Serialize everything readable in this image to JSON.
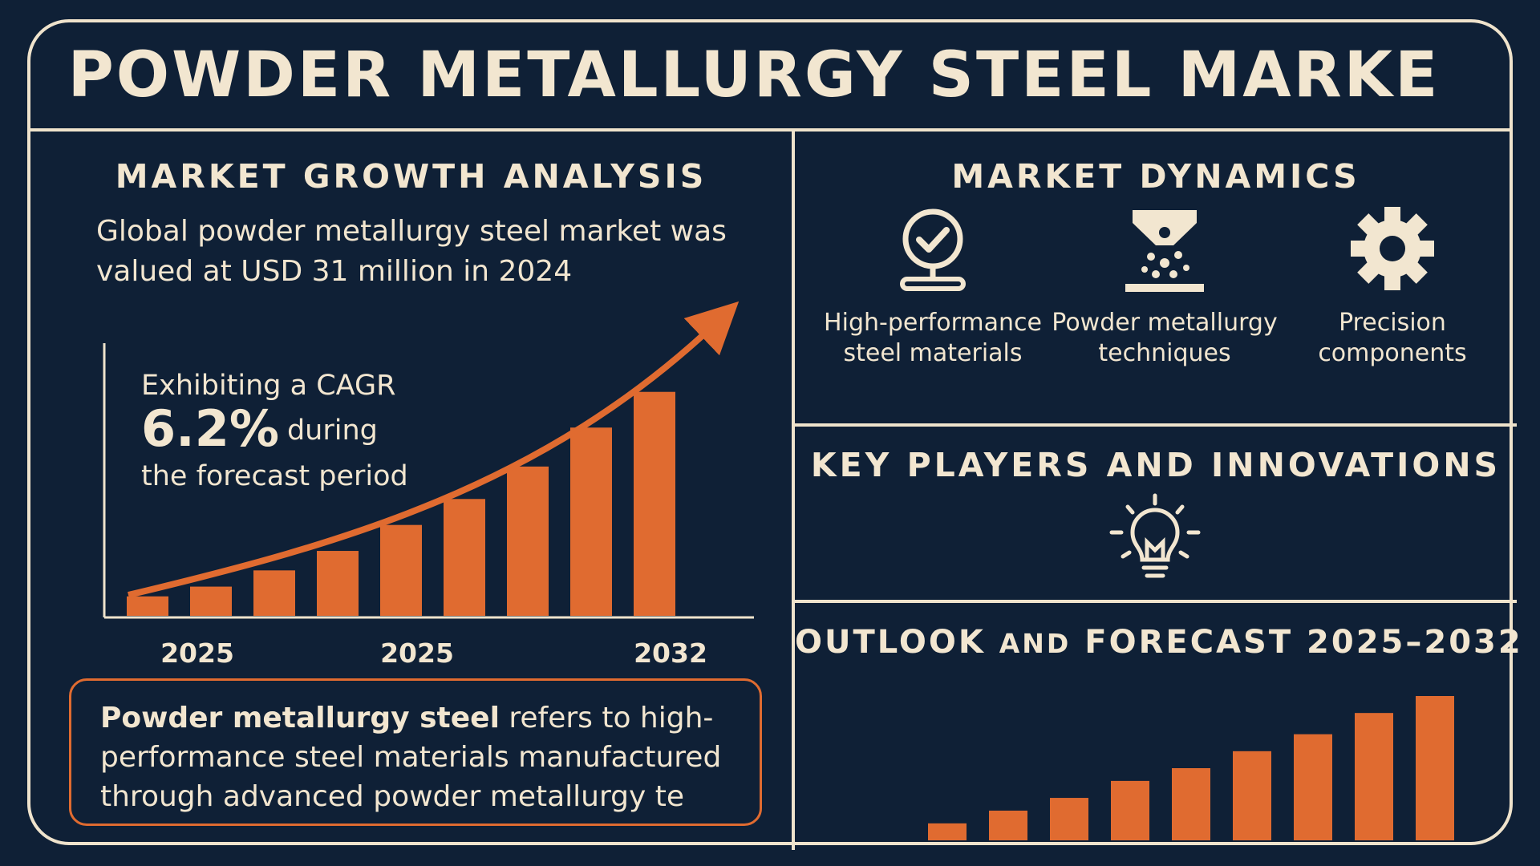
{
  "title": "POWDER METALLURGY STEEL MARKE",
  "growth": {
    "heading": "MARKET GROWTH ANALYSIS",
    "intro": "Global powder metallurgy steel market was valued at USD 31 million in 2024",
    "cagr_line1": "Exhibiting a CAGR",
    "cagr_value": "6.2%",
    "cagr_during": "during",
    "cagr_line3": "the forecast period"
  },
  "description": {
    "bold": "Powder metallurgy steel",
    "rest": " refers to high-performance steel materials manufactured through advanced powder metallurgy te"
  },
  "dynamics": {
    "heading": "MARKET DYNAMICS",
    "items": [
      {
        "label": "High-performance steel materials",
        "icon": "checkmark-badge-icon"
      },
      {
        "label": "Powder metallurgy techniques",
        "icon": "powder-dispenser-icon"
      },
      {
        "label": "Precision components",
        "icon": "gear-icon"
      }
    ]
  },
  "players": {
    "heading": "KEY PLAYERS AND INNOVATIONS",
    "icon": "lightbulb-icon"
  },
  "outlook": {
    "heading_a": "OUTLOOK ",
    "heading_b": "AND",
    "heading_c": " FORECAST 2025–2032"
  },
  "colors": {
    "background": "#0f2036",
    "accent": "#e06b30",
    "text": "#f2e6d0"
  },
  "chart_data": [
    {
      "type": "bar",
      "tick_labels": [
        "2025",
        "2025",
        "2032"
      ],
      "values": [
        3,
        4.5,
        7,
        10,
        14,
        18,
        23,
        29,
        34.5
      ],
      "trend_arrow": true,
      "ylim": [
        0,
        42
      ]
    },
    {
      "type": "bar",
      "values": [
        2,
        3.5,
        5,
        7,
        8.5,
        10.5,
        12.5,
        15,
        17
      ]
    }
  ]
}
